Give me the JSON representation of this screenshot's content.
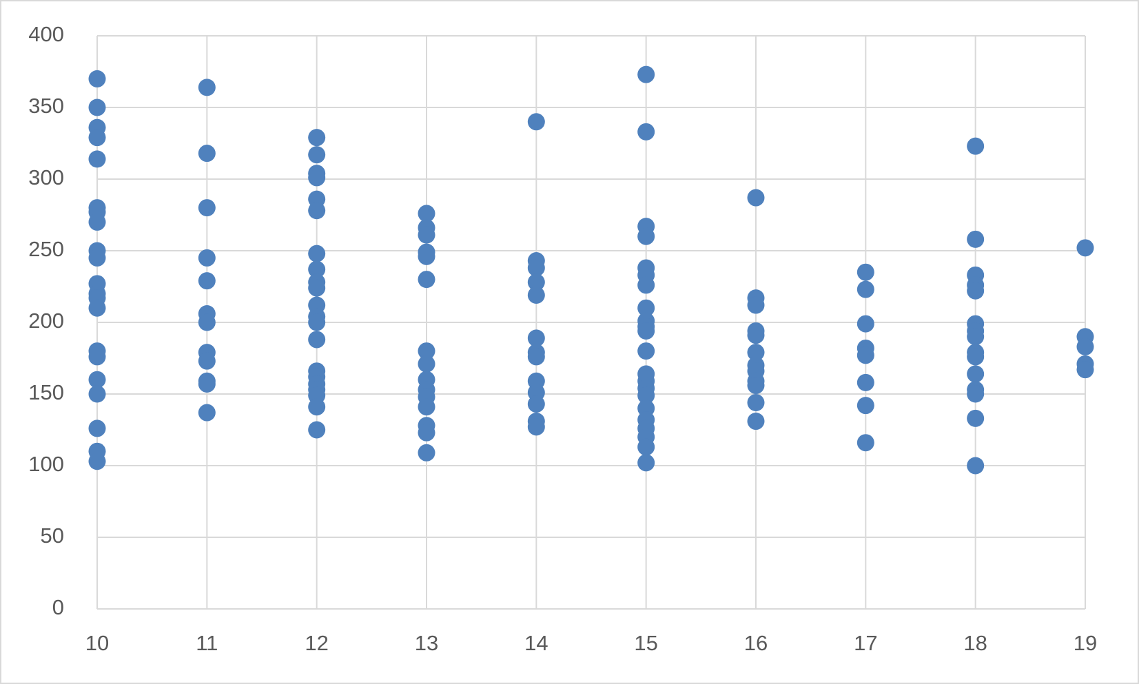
{
  "chart_data": {
    "type": "scatter",
    "color": "#4f81bd",
    "grid": true,
    "xlim": [
      10,
      19
    ],
    "xticks": [
      10,
      11,
      12,
      13,
      14,
      15,
      16,
      17,
      18,
      19
    ],
    "ylim": [
      0,
      400
    ],
    "yticks": [
      0,
      50,
      100,
      150,
      200,
      250,
      300,
      350,
      400
    ],
    "x": [
      10,
      10,
      10,
      10,
      10,
      10,
      10,
      10,
      10,
      10,
      10,
      10,
      10,
      10,
      10,
      10,
      10,
      10,
      10,
      10,
      10,
      11,
      11,
      11,
      11,
      11,
      11,
      11,
      11,
      11,
      11,
      11,
      11,
      12,
      12,
      12,
      12,
      12,
      12,
      12,
      12,
      12,
      12,
      12,
      12,
      12,
      12,
      12,
      12,
      12,
      12,
      12,
      12,
      12,
      13,
      13,
      13,
      13,
      13,
      13,
      13,
      13,
      13,
      13,
      13,
      13,
      13,
      13,
      13,
      14,
      14,
      14,
      14,
      14,
      14,
      14,
      14,
      14,
      14,
      14,
      14,
      14,
      15,
      15,
      15,
      15,
      15,
      15,
      15,
      15,
      15,
      15,
      15,
      15,
      15,
      15,
      15,
      15,
      15,
      15,
      15,
      15,
      15,
      15,
      16,
      16,
      16,
      16,
      16,
      16,
      16,
      16,
      16,
      16,
      16,
      16,
      17,
      17,
      17,
      17,
      17,
      17,
      17,
      17,
      18,
      18,
      18,
      18,
      18,
      18,
      18,
      18,
      18,
      18,
      18,
      18,
      18,
      18,
      18,
      19,
      19,
      19,
      19,
      19
    ],
    "y": [
      370,
      350,
      336,
      329,
      314,
      280,
      277,
      270,
      250,
      245,
      227,
      220,
      217,
      210,
      180,
      176,
      160,
      150,
      126,
      110,
      103,
      364,
      318,
      280,
      245,
      229,
      206,
      200,
      179,
      173,
      159,
      157,
      137,
      329,
      317,
      304,
      301,
      286,
      278,
      248,
      237,
      228,
      224,
      212,
      204,
      200,
      188,
      166,
      162,
      157,
      153,
      149,
      141,
      125,
      276,
      266,
      261,
      249,
      246,
      230,
      180,
      171,
      160,
      153,
      148,
      141,
      128,
      123,
      109,
      340,
      243,
      238,
      228,
      219,
      189,
      179,
      176,
      159,
      151,
      143,
      131,
      127,
      373,
      333,
      267,
      260,
      238,
      233,
      226,
      210,
      201,
      197,
      194,
      180,
      164,
      159,
      154,
      149,
      140,
      132,
      126,
      120,
      113,
      102,
      287,
      217,
      212,
      194,
      191,
      179,
      170,
      166,
      159,
      156,
      144,
      131,
      235,
      223,
      199,
      182,
      177,
      158,
      142,
      116,
      323,
      258,
      233,
      226,
      222,
      199,
      194,
      190,
      179,
      176,
      164,
      153,
      150,
      133,
      100,
      252,
      190,
      183,
      171,
      167
    ]
  }
}
